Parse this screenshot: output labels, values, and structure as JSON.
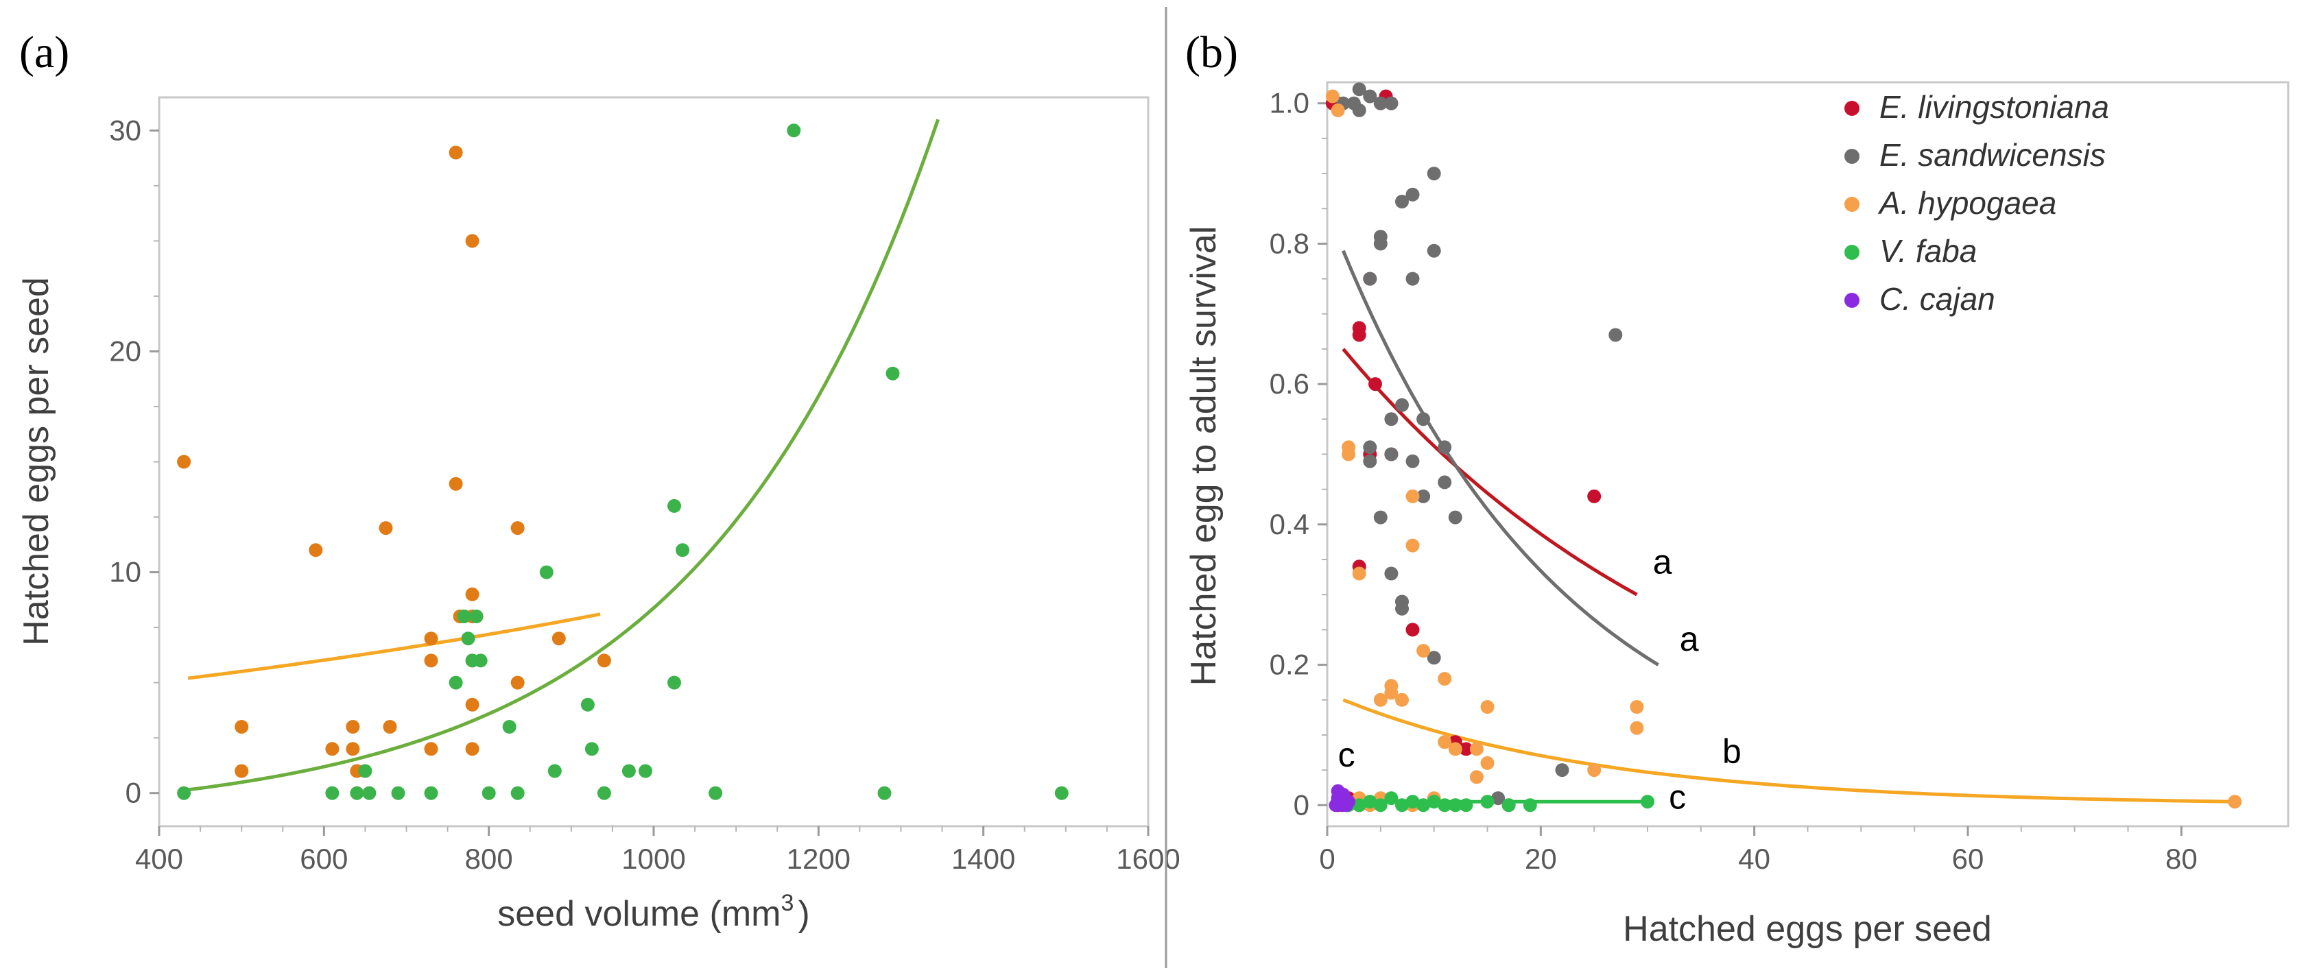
{
  "chart_data": [
    {
      "panel": "(a)",
      "type": "scatter",
      "xlabel": "seed volume (mm",
      "xlabel_sup": "3",
      "xlabel_end": ")",
      "ylabel": "Hatched eggs per seed",
      "xlim": [
        400,
        1600
      ],
      "ylim": [
        -1.5,
        31.5
      ],
      "xticks": [
        400,
        600,
        800,
        1000,
        1200,
        1400,
        1600
      ],
      "yticks": [
        0,
        10,
        20,
        30
      ],
      "grid": false,
      "series": [
        {
          "name": "orange",
          "color": "#E07B15",
          "points": [
            [
              430,
              15
            ],
            [
              500,
              3
            ],
            [
              500,
              1
            ],
            [
              590,
              11
            ],
            [
              610,
              2
            ],
            [
              635,
              3
            ],
            [
              635,
              2
            ],
            [
              640,
              1
            ],
            [
              675,
              12
            ],
            [
              680,
              3
            ],
            [
              730,
              7
            ],
            [
              730,
              6
            ],
            [
              730,
              2
            ],
            [
              760,
              29
            ],
            [
              760,
              14
            ],
            [
              765,
              8
            ],
            [
              780,
              25
            ],
            [
              780,
              9
            ],
            [
              780,
              8
            ],
            [
              780,
              6
            ],
            [
              780,
              4
            ],
            [
              780,
              2
            ],
            [
              835,
              12
            ],
            [
              835,
              5
            ],
            [
              885,
              7
            ],
            [
              940,
              6
            ]
          ]
        },
        {
          "name": "green",
          "color": "#3CB34A",
          "points": [
            [
              430,
              0
            ],
            [
              610,
              0
            ],
            [
              640,
              0
            ],
            [
              650,
              1
            ],
            [
              655,
              0
            ],
            [
              690,
              0
            ],
            [
              730,
              0
            ],
            [
              760,
              5
            ],
            [
              770,
              8
            ],
            [
              775,
              7
            ],
            [
              780,
              6
            ],
            [
              785,
              8
            ],
            [
              790,
              6
            ],
            [
              800,
              0
            ],
            [
              825,
              3
            ],
            [
              835,
              0
            ],
            [
              870,
              10
            ],
            [
              880,
              1
            ],
            [
              920,
              4
            ],
            [
              925,
              2
            ],
            [
              940,
              0
            ],
            [
              970,
              1
            ],
            [
              990,
              1
            ],
            [
              1025,
              13
            ],
            [
              1025,
              5
            ],
            [
              1035,
              11
            ],
            [
              1075,
              0
            ],
            [
              1170,
              30
            ],
            [
              1280,
              0
            ],
            [
              1290,
              19
            ],
            [
              1495,
              0
            ]
          ]
        }
      ],
      "curves": [
        {
          "name": "orange-fit",
          "color": "#F5A623",
          "x": [
            435,
            935
          ],
          "y0": 5.2,
          "y1": 8.1,
          "kind": "exp"
        },
        {
          "name": "green-fit",
          "color": "#6BAE3D",
          "x": [
            435,
            1345
          ],
          "y0": 0.15,
          "y1": 30.5,
          "kind": "exp-offset"
        }
      ]
    },
    {
      "panel": "(b)",
      "type": "scatter",
      "xlabel": "Hatched eggs per seed",
      "ylabel": "Hatched egg to adult survival",
      "xlim": [
        0,
        90
      ],
      "ylim": [
        -0.03,
        1.03
      ],
      "xticks": [
        0,
        20,
        40,
        60,
        80
      ],
      "yticks": [
        0,
        0.2,
        0.4,
        0.6,
        0.8,
        1.0
      ],
      "ytick_labels": [
        "0",
        "0.2",
        "0.4",
        "0.6",
        "0.8",
        "1.0"
      ],
      "grid": false,
      "legend": "top-right",
      "series": [
        {
          "name": "E. livingstoniana",
          "color": "#C8102E",
          "points": [
            [
              0.5,
              1.0
            ],
            [
              1,
              1.0
            ],
            [
              5,
              1.0
            ],
            [
              5.5,
              1.01
            ],
            [
              6,
              1.0
            ],
            [
              4,
              0.75
            ],
            [
              3,
              0.68
            ],
            [
              3,
              0.67
            ],
            [
              4.5,
              0.6
            ],
            [
              6,
              0.5
            ],
            [
              4,
              0.5
            ],
            [
              8,
              0.25
            ],
            [
              3,
              0.34
            ],
            [
              25,
              0.44
            ],
            [
              13,
              0.08
            ],
            [
              12,
              0.09
            ],
            [
              1,
              0.0
            ],
            [
              2,
              0.01
            ],
            [
              3,
              0.0
            ],
            [
              5,
              0.005
            ]
          ]
        },
        {
          "name": "E. sandwicensis",
          "color": "#6E6E6E",
          "points": [
            [
              1.5,
              1.0
            ],
            [
              2.5,
              1.0
            ],
            [
              3,
              1.02
            ],
            [
              4,
              1.01
            ],
            [
              5,
              1.0
            ],
            [
              6,
              1.0
            ],
            [
              3,
              0.99
            ],
            [
              10,
              0.9
            ],
            [
              8,
              0.87
            ],
            [
              7,
              0.86
            ],
            [
              5,
              0.81
            ],
            [
              5,
              0.8
            ],
            [
              10,
              0.79
            ],
            [
              8,
              0.75
            ],
            [
              4,
              0.75
            ],
            [
              7,
              0.57
            ],
            [
              9,
              0.55
            ],
            [
              6,
              0.55
            ],
            [
              11,
              0.51
            ],
            [
              4,
              0.51
            ],
            [
              4,
              0.49
            ],
            [
              6,
              0.5
            ],
            [
              8,
              0.49
            ],
            [
              11,
              0.46
            ],
            [
              9,
              0.44
            ],
            [
              12,
              0.41
            ],
            [
              5,
              0.41
            ],
            [
              6,
              0.33
            ],
            [
              7,
              0.29
            ],
            [
              7,
              0.28
            ],
            [
              10,
              0.21
            ],
            [
              27,
              0.67
            ],
            [
              22,
              0.05
            ],
            [
              16,
              0.01
            ],
            [
              17,
              0.0
            ]
          ]
        },
        {
          "name": "A. hypogaea",
          "color": "#F7A04B",
          "points": [
            [
              0.5,
              1.01
            ],
            [
              1,
              0.99
            ],
            [
              2,
              0.51
            ],
            [
              2,
              0.5
            ],
            [
              8,
              0.44
            ],
            [
              8,
              0.37
            ],
            [
              3,
              0.33
            ],
            [
              9,
              0.22
            ],
            [
              11,
              0.18
            ],
            [
              6,
              0.17
            ],
            [
              6,
              0.16
            ],
            [
              7,
              0.15
            ],
            [
              5,
              0.15
            ],
            [
              15,
              0.14
            ],
            [
              29,
              0.14
            ],
            [
              29,
              0.11
            ],
            [
              11,
              0.09
            ],
            [
              12,
              0.08
            ],
            [
              14,
              0.08
            ],
            [
              15,
              0.06
            ],
            [
              25,
              0.05
            ],
            [
              14,
              0.04
            ],
            [
              3,
              0.01
            ],
            [
              4,
              0.0
            ],
            [
              5,
              0.01
            ],
            [
              8,
              0.0
            ],
            [
              10,
              0.01
            ],
            [
              12,
              0.0
            ],
            [
              85,
              0.005
            ]
          ]
        },
        {
          "name": "V. faba",
          "color": "#2DBE4E",
          "points": [
            [
              1,
              0.01
            ],
            [
              2,
              0.0
            ],
            [
              3,
              0.0
            ],
            [
              4,
              0.005
            ],
            [
              5,
              0.0
            ],
            [
              6,
              0.01
            ],
            [
              7,
              0.0
            ],
            [
              8,
              0.005
            ],
            [
              9,
              0.0
            ],
            [
              10,
              0.005
            ],
            [
              11,
              0.0
            ],
            [
              12,
              0.0
            ],
            [
              13,
              0.0
            ],
            [
              15,
              0.005
            ],
            [
              17,
              0.0
            ],
            [
              19,
              0.0
            ],
            [
              30,
              0.005
            ]
          ]
        },
        {
          "name": "C. cajan",
          "color": "#8A2BE2",
          "points": [
            [
              0.8,
              0.0
            ],
            [
              1,
              0.01
            ],
            [
              1.2,
              0.005
            ],
            [
              1.4,
              0.0
            ],
            [
              1.6,
              0.01
            ],
            [
              1.8,
              0.0
            ],
            [
              2,
              0.005
            ],
            [
              1,
              0.02
            ],
            [
              1.5,
              0.015
            ]
          ]
        }
      ],
      "curves": [
        {
          "name": "red-fit",
          "color": "#C0161E",
          "x": [
            1.5,
            29
          ],
          "y0": 0.65,
          "y1": 0.3
        },
        {
          "name": "gray-fit",
          "color": "#6E6E6E",
          "x": [
            1.5,
            31
          ],
          "y0": 0.79,
          "y1": 0.2
        },
        {
          "name": "orange-fit",
          "color": "#F5A623",
          "x": [
            1.5,
            85
          ],
          "y0": 0.15,
          "y1": 0.005
        },
        {
          "name": "green-fit",
          "color": "#2DBE4E",
          "x": [
            1,
            30
          ],
          "y0": 0.005,
          "y1": 0.005
        }
      ],
      "annotations": [
        {
          "text": "a",
          "x": 30.5,
          "y": 0.33
        },
        {
          "text": "a",
          "x": 33,
          "y": 0.22
        },
        {
          "text": "b",
          "x": 37,
          "y": 0.06
        },
        {
          "text": "c",
          "x": 32,
          "y": -0.005
        },
        {
          "text": "c",
          "x": 1,
          "y": 0.055
        }
      ]
    }
  ]
}
